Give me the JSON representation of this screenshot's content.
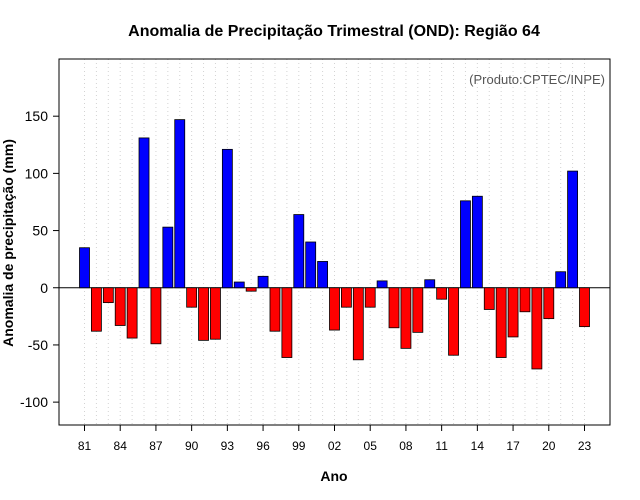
{
  "chart_data": {
    "type": "bar",
    "title": "Anomalia de Precipitação Trimestral (OND): Região 64",
    "xlabel": "Ano",
    "ylabel": "Anomalia de precipitação (mm)",
    "annotation": "(Produto:CPTEC/INPE)",
    "ylim": [
      -120,
      200
    ],
    "yticks": [
      -100,
      -50,
      0,
      50,
      100,
      150
    ],
    "grid": "vertical dotted",
    "years": [
      1981,
      1982,
      1983,
      1984,
      1985,
      1986,
      1987,
      1988,
      1989,
      1990,
      1991,
      1992,
      1993,
      1994,
      1995,
      1996,
      1997,
      1998,
      1999,
      2000,
      2001,
      2002,
      2003,
      2004,
      2005,
      2006,
      2007,
      2008,
      2009,
      2010,
      2011,
      2012,
      2013,
      2014,
      2015,
      2016,
      2017,
      2018,
      2019,
      2020,
      2021,
      2022,
      2023
    ],
    "xtick_labels": [
      {
        "year": 1981,
        "label": "81"
      },
      {
        "year": 1984,
        "label": "84"
      },
      {
        "year": 1987,
        "label": "87"
      },
      {
        "year": 1990,
        "label": "90"
      },
      {
        "year": 1993,
        "label": "93"
      },
      {
        "year": 1996,
        "label": "96"
      },
      {
        "year": 1999,
        "label": "99"
      },
      {
        "year": 2002,
        "label": "02"
      },
      {
        "year": 2005,
        "label": "05"
      },
      {
        "year": 2008,
        "label": "08"
      },
      {
        "year": 2011,
        "label": "11"
      },
      {
        "year": 2014,
        "label": "14"
      },
      {
        "year": 2017,
        "label": "17"
      },
      {
        "year": 2020,
        "label": "20"
      },
      {
        "year": 2023,
        "label": "23"
      }
    ],
    "values": [
      35,
      -38,
      -13,
      -33,
      -44,
      131,
      -49,
      53,
      147,
      -17,
      -46,
      -45,
      121,
      5,
      -3,
      10,
      -38,
      -61,
      64,
      40,
      23,
      -37,
      -17,
      -63,
      -17,
      6,
      -35,
      -53,
      -39,
      7,
      -10,
      -59,
      76,
      80,
      -19,
      -61,
      -43,
      -21,
      -71,
      -27,
      14,
      102,
      -34
    ],
    "colors": {
      "positive": "#0000ff",
      "negative": "#ff0000",
      "outline": "#000000"
    }
  }
}
